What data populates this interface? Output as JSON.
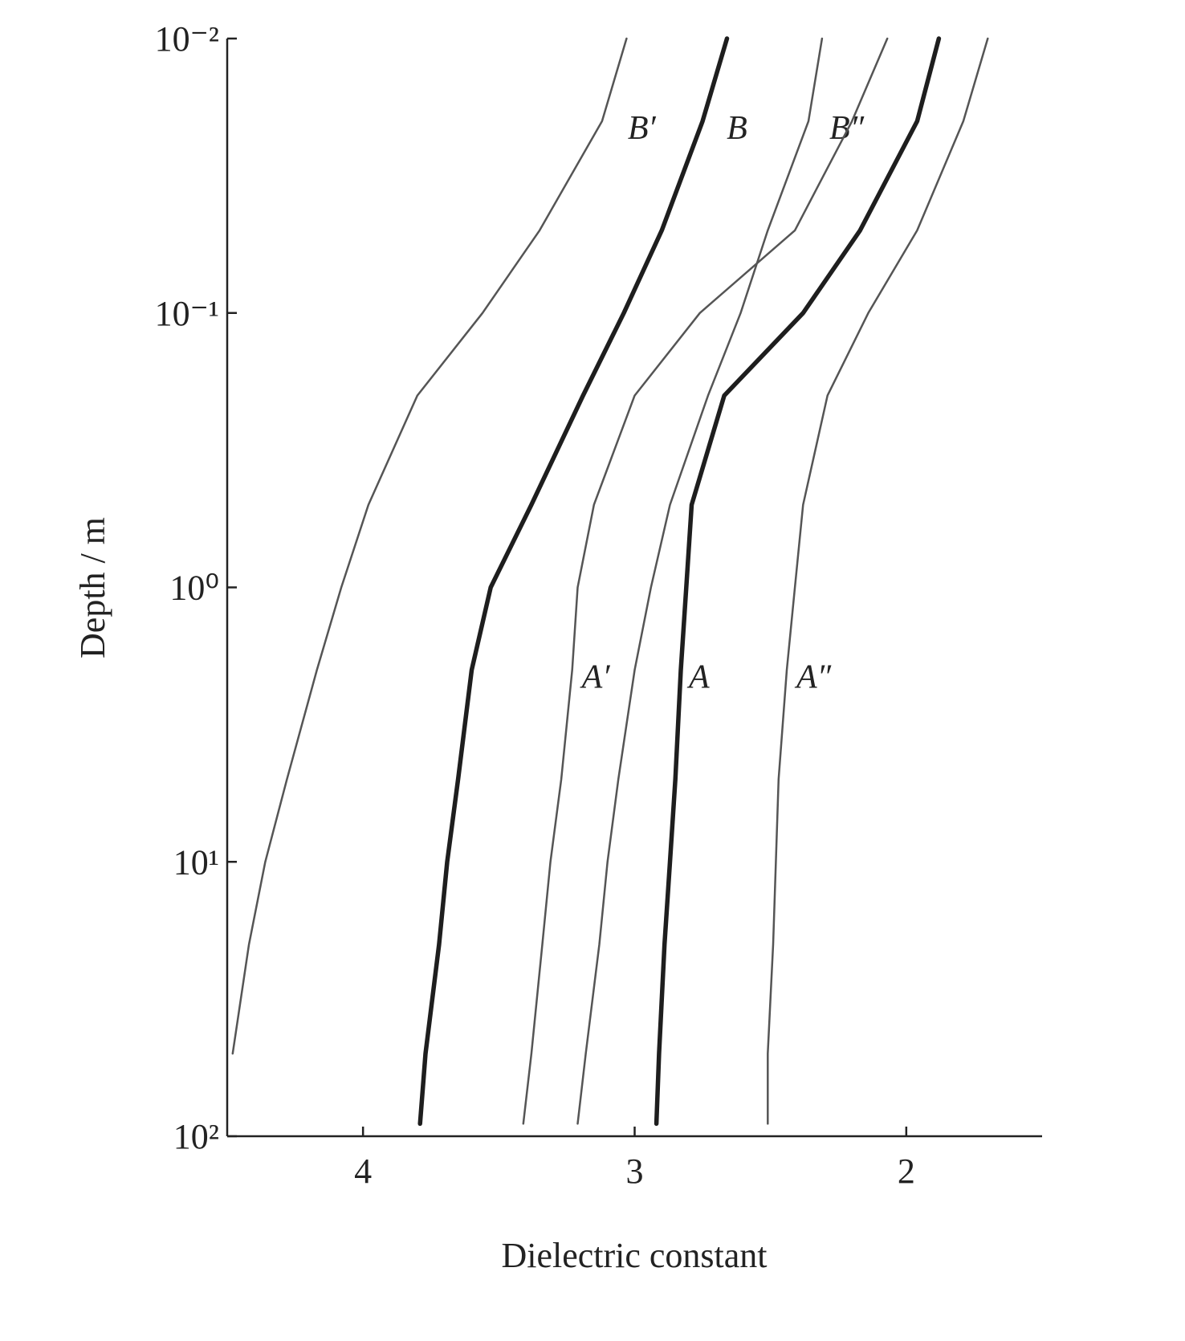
{
  "chart_data": {
    "type": "line",
    "x_label": "Dielectric constant",
    "y_label": "Depth / m",
    "xlim": [
      4.5,
      1.5
    ],
    "xticks": [
      4,
      3,
      2
    ],
    "ylim": [
      0.01,
      100
    ],
    "y_scale": "log",
    "y_inverted": true,
    "yticks": [
      {
        "value": 0.01,
        "label": "10⁻²"
      },
      {
        "value": 0.1,
        "label": "10⁻¹"
      },
      {
        "value": 1,
        "label": "10⁰"
      },
      {
        "value": 10,
        "label": "10¹"
      },
      {
        "value": 100,
        "label": "10²"
      }
    ],
    "y": [
      0.01,
      0.02,
      0.05,
      0.1,
      0.2,
      0.5,
      1,
      2,
      5,
      10,
      20,
      50,
      90
    ],
    "series": [
      {
        "name": "B′",
        "color": "#555555",
        "line_width": 2.5,
        "values": [
          3.03,
          3.12,
          3.35,
          3.56,
          3.8,
          3.98,
          4.08,
          4.17,
          4.28,
          4.36,
          4.42,
          4.48,
          null
        ]
      },
      {
        "name": "B",
        "color": "#1e1e1e",
        "line_width": 5.5,
        "values": [
          2.66,
          2.75,
          2.9,
          3.04,
          3.19,
          3.38,
          3.53,
          3.6,
          3.65,
          3.69,
          3.72,
          3.77,
          3.79
        ]
      },
      {
        "name": "B″",
        "color": "#555555",
        "line_width": 2.5,
        "values": [
          2.31,
          2.36,
          2.51,
          2.61,
          2.73,
          2.87,
          2.94,
          3.0,
          3.06,
          3.1,
          3.13,
          3.18,
          3.21
        ]
      },
      {
        "name": "A′",
        "color": "#555555",
        "line_width": 2.5,
        "values": [
          2.07,
          2.2,
          2.41,
          2.76,
          3.0,
          3.15,
          3.21,
          3.23,
          3.27,
          3.31,
          3.34,
          3.38,
          3.41
        ]
      },
      {
        "name": "A",
        "color": "#1e1e1e",
        "line_width": 5.5,
        "values": [
          1.88,
          1.96,
          2.17,
          2.38,
          2.67,
          2.79,
          2.81,
          2.83,
          2.85,
          2.87,
          2.89,
          2.91,
          2.92
        ]
      },
      {
        "name": "A″",
        "color": "#555555",
        "line_width": 2.5,
        "values": [
          1.7,
          1.79,
          1.96,
          2.14,
          2.29,
          2.38,
          2.41,
          2.44,
          2.47,
          2.48,
          2.49,
          2.51,
          2.51
        ]
      }
    ]
  }
}
